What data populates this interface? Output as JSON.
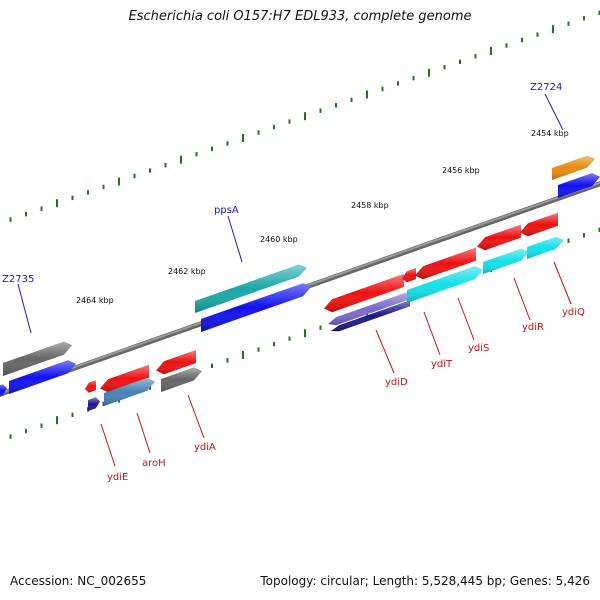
{
  "header": {
    "title": "Escherichia coli O157:H7 EDL933, complete genome"
  },
  "footer": {
    "accession": "Accession: NC_002655",
    "summary": "Topology: circular; Length: 5,528,445 bp; Genes: 5,426"
  },
  "scale_labels": [
    "2454 kbp",
    "2456 kbp",
    "2458 kbp",
    "2460 kbp",
    "2462 kbp",
    "2464 kbp"
  ],
  "forward_labels": [
    "Z2724",
    "ppsA",
    "Z2735"
  ],
  "reverse_labels": [
    "ydiQ",
    "ydiR",
    "ydiS",
    "ydiT",
    "ydiD",
    "ydiA",
    "aroH",
    "ydiE"
  ],
  "colors": {
    "forward_label": "#1a1acc",
    "reverse_label": "#cc1111",
    "tick": "#1a7a1a",
    "backbone": "#808080",
    "red_gene": "#ee1111",
    "blue_gene": "#1111ee",
    "cyan_gene": "#11e0e8",
    "teal_gene": "#1aa8a8",
    "gray_gene": "#666666",
    "orange_gene": "#e88a10",
    "steel_gene": "#4682b4",
    "slate_gene": "#7b68cc",
    "navy_gene": "#1a1a88"
  }
}
